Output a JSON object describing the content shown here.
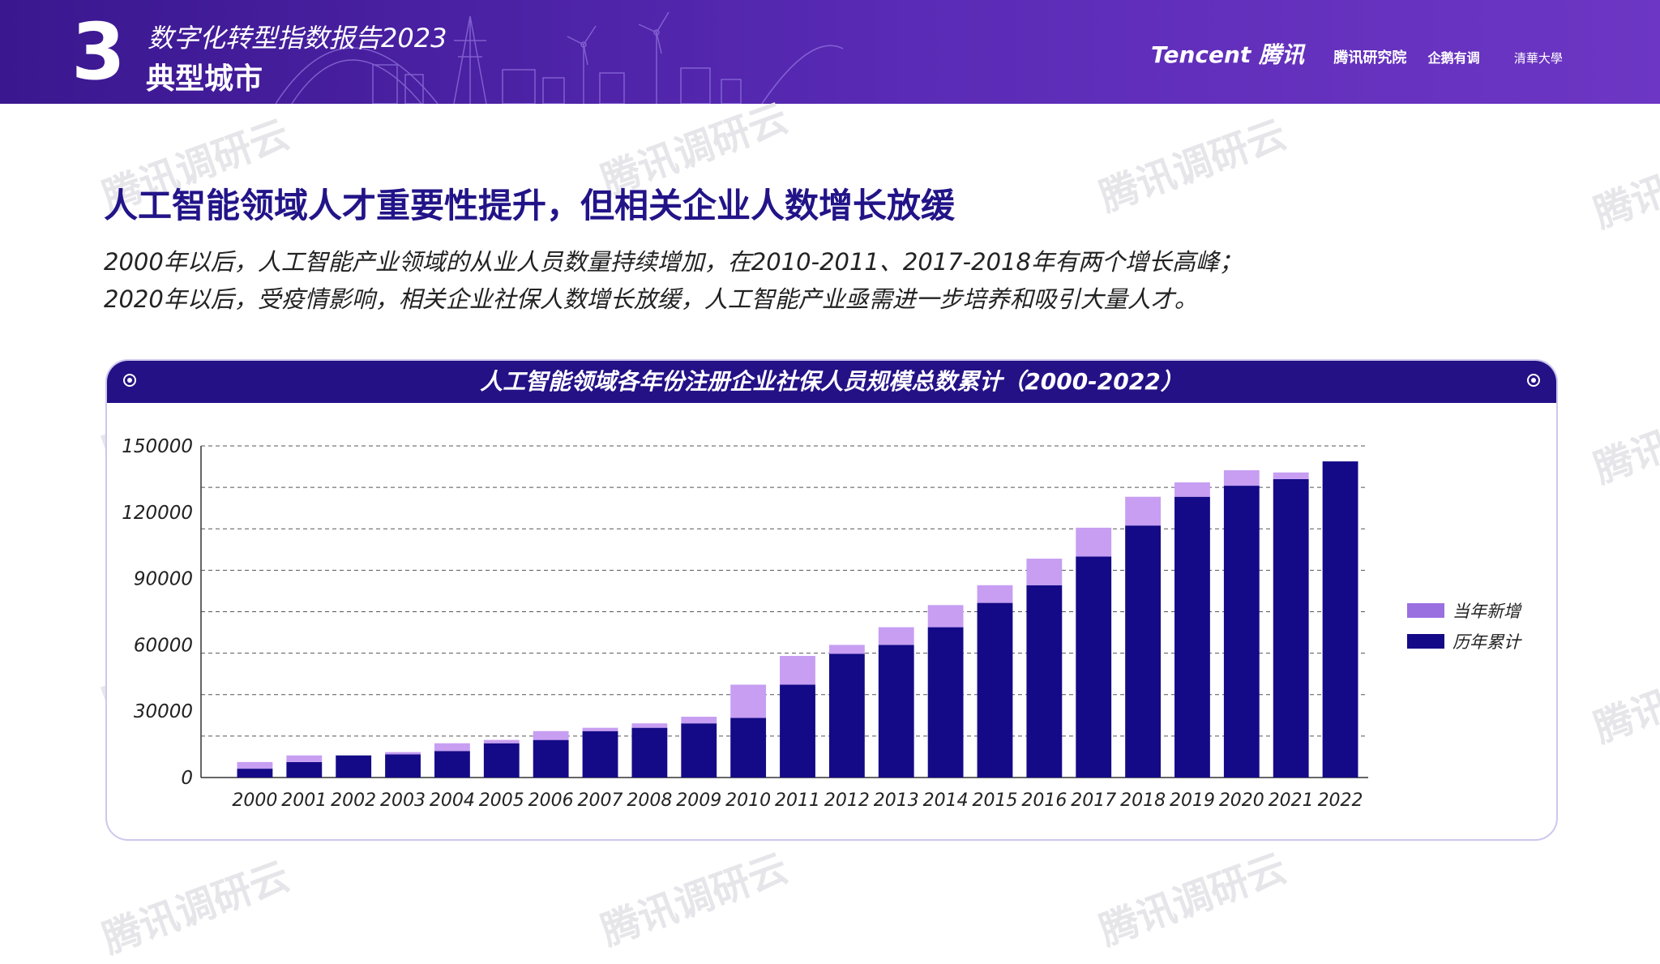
{
  "header": {
    "section_number": "3",
    "report_title": "数字化转型指数报告2023",
    "section_title": "典型城市",
    "logos": {
      "tencent": "Tencent 腾讯",
      "tencent_research": "腾讯研究院",
      "qichacha": "企鹅有调",
      "tsinghua": "清華大學"
    }
  },
  "watermark": "腾讯调研云",
  "main_title": "人工智能领域人才重要性提升，但相关企业人数增长放缓",
  "description": [
    "2000年以后，人工智能产业领域的从业人员数量持续增加，在2010-2011、2017-2018年有两个增长高峰；",
    "2020年以后，受疫情影响，相关企业社保人数增长放缓，人工智能产业亟需进一步培养和吸引大量人才。"
  ],
  "colors": {
    "accent": "#241186",
    "cumulative": "#140a87",
    "new": "#c79ef2"
  },
  "chart_data": {
    "type": "bar",
    "stacked": true,
    "title": "人工智能领域各年份注册企业社保人员规模总数累计（2000-2022）",
    "categories": [
      "2000",
      "2001",
      "2002",
      "2003",
      "2004",
      "2005",
      "2006",
      "2007",
      "2008",
      "2009",
      "2010",
      "2011",
      "2012",
      "2013",
      "2014",
      "2015",
      "2016",
      "2017",
      "2018",
      "2019",
      "2020",
      "2021",
      "2022"
    ],
    "series": [
      {
        "name": "历年累计",
        "color": "#140a87",
        "values": [
          4000,
          7000,
          10000,
          10500,
          12000,
          15500,
          17000,
          21000,
          22500,
          24500,
          27000,
          42000,
          56000,
          60000,
          68000,
          79000,
          87000,
          100000,
          114000,
          127000,
          132000,
          135000,
          143000
        ]
      },
      {
        "name": "当年新增",
        "color": "#c79ef2",
        "values": [
          3000,
          3000,
          0,
          1000,
          3500,
          1500,
          4000,
          1500,
          2000,
          3000,
          15000,
          13000,
          4000,
          8000,
          10000,
          8000,
          12000,
          13000,
          13000,
          6500,
          7000,
          3000,
          0
        ]
      }
    ],
    "legend_order": [
      "当年新增",
      "历年累计"
    ],
    "y_ticks": [
      "0",
      "30000",
      "60000",
      "90000",
      "120000",
      "150000"
    ],
    "ylim": [
      0,
      150000
    ],
    "grid": true,
    "legend_position": "right"
  }
}
